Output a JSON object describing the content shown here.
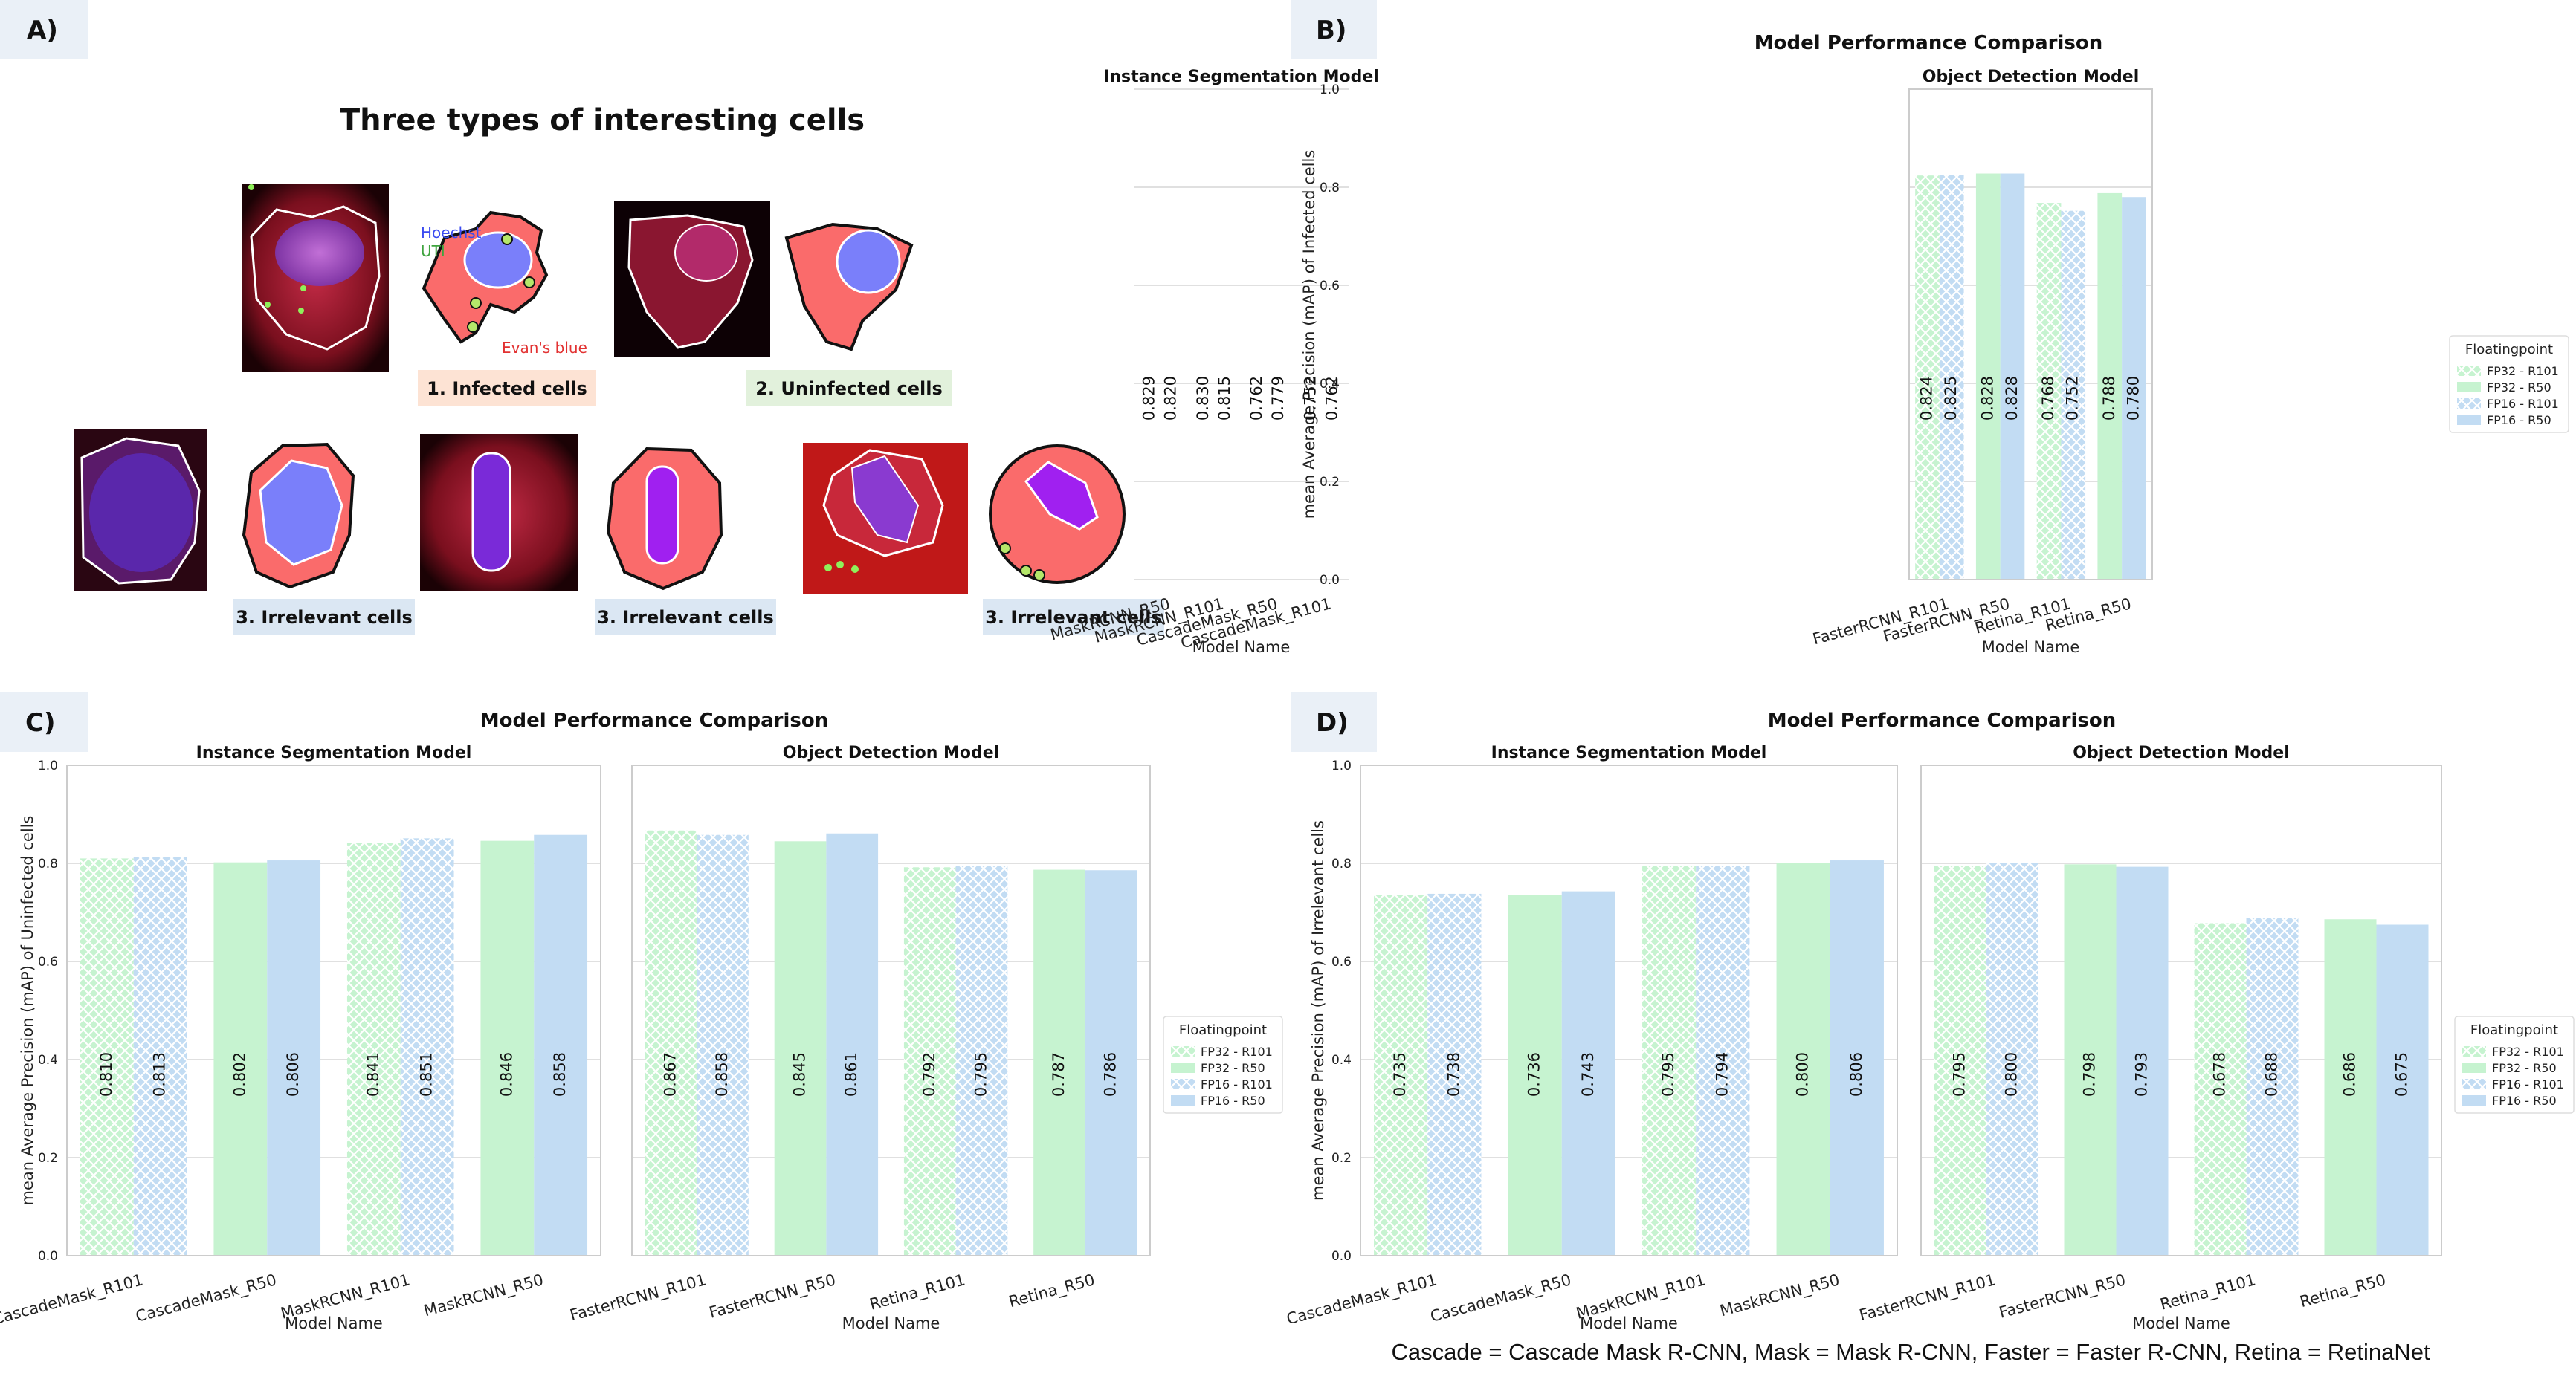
{
  "panel_labels": {
    "a": "A)",
    "b": "B)",
    "c": "C)",
    "d": "D)"
  },
  "panel_a": {
    "title": "Three types of interesting cells",
    "stain_labels": {
      "hoechst": "Hoechst",
      "uti": "UTI",
      "evans": "Evan's blue"
    },
    "captions": {
      "infected": "1. Infected cells",
      "uninfected": "2. Uninfected cells",
      "irrelevant": "3. Irrelevant cells"
    }
  },
  "legend": {
    "title": "Floatingpoint",
    "entries": [
      "FP32 - R101",
      "FP32 - R50",
      "FP16 - R101",
      "FP16 - R50"
    ]
  },
  "colors": {
    "fp32": "#c6f3d0",
    "fp16": "#c2dcf3",
    "hatch": "#ffffff",
    "caption_infected": "#fde3d4",
    "caption_uninfected": "#e2f1dc",
    "caption_irrelevant": "#dbe7f3",
    "label_bg": "#eaf0f7"
  },
  "footnote": "Cascade = Cascade Mask R-CNN, Mask = Mask R-CNN, Faster = Faster R-CNN, Retina = RetinaNet",
  "chart_data": [
    {
      "id": "b",
      "type": "bar",
      "title": "Model Performance Comparison",
      "ylabel": "mean Average Precision (mAP) of Infected cells",
      "xlabel": "Model Name",
      "ylim": [
        0,
        1.0
      ],
      "yticks": [
        "0.0",
        "0.2",
        "0.4",
        "0.6",
        "0.8",
        "1.0"
      ],
      "grid": true,
      "legend_position": "right",
      "subplots": [
        {
          "title": "Instance Segmentation Model",
          "categories": [
            "CascadeMask_R101",
            "CascadeMask_R50",
            "MaskRCNN_R101",
            "MaskRCNN_R50"
          ],
          "bars": [
            [
              0.762,
              0.752
            ],
            [
              0.779,
              0.762
            ],
            [
              0.815,
              0.83
            ],
            [
              0.82,
              0.829
            ]
          ],
          "labels": [
            [
              "0.762",
              "0.752"
            ],
            [
              "0.779",
              "0.762"
            ],
            [
              "0.815",
              "0.830"
            ],
            [
              "0.820",
              "0.829"
            ]
          ]
        },
        {
          "title": "Object Detection Model",
          "categories": [
            "FasterRCNN_R101",
            "FasterRCNN_R50",
            "Retina_R101",
            "Retina_R50"
          ],
          "bars": [
            [
              0.824,
              0.825
            ],
            [
              0.828,
              0.828
            ],
            [
              0.768,
              0.752
            ],
            [
              0.788,
              0.78
            ]
          ],
          "labels": [
            [
              "0.824",
              "0.825"
            ],
            [
              "0.828",
              "0.828"
            ],
            [
              "0.768",
              "0.752"
            ],
            [
              "0.788",
              "0.780"
            ]
          ]
        }
      ]
    },
    {
      "id": "c",
      "type": "bar",
      "title": "Model Performance Comparison",
      "ylabel": "mean Average Precision (mAP) of Uninfected cells",
      "xlabel": "Model Name",
      "ylim": [
        0,
        1.0
      ],
      "yticks": [
        "0.0",
        "0.2",
        "0.4",
        "0.6",
        "0.8",
        "1.0"
      ],
      "grid": true,
      "legend_position": "right",
      "subplots": [
        {
          "title": "Instance Segmentation Model",
          "categories": [
            "CascadeMask_R101",
            "CascadeMask_R50",
            "MaskRCNN_R101",
            "MaskRCNN_R50"
          ],
          "bars": [
            [
              0.81,
              0.813
            ],
            [
              0.802,
              0.806
            ],
            [
              0.841,
              0.851
            ],
            [
              0.846,
              0.858
            ]
          ],
          "labels": [
            [
              "0.810",
              "0.813"
            ],
            [
              "0.802",
              "0.806"
            ],
            [
              "0.841",
              "0.851"
            ],
            [
              "0.846",
              "0.858"
            ]
          ]
        },
        {
          "title": "Object Detection Model",
          "categories": [
            "FasterRCNN_R101",
            "FasterRCNN_R50",
            "Retina_R101",
            "Retina_R50"
          ],
          "bars": [
            [
              0.867,
              0.858
            ],
            [
              0.845,
              0.861
            ],
            [
              0.792,
              0.795
            ],
            [
              0.787,
              0.786
            ]
          ],
          "labels": [
            [
              "0.867",
              "0.858"
            ],
            [
              "0.845",
              "0.861"
            ],
            [
              "0.792",
              "0.795"
            ],
            [
              "0.787",
              "0.786"
            ]
          ]
        }
      ]
    },
    {
      "id": "d",
      "type": "bar",
      "title": "Model Performance Comparison",
      "ylabel": "mean Average Precision (mAP) of Irrelevant cells",
      "xlabel": "Model Name",
      "ylim": [
        0,
        1.0
      ],
      "yticks": [
        "0.0",
        "0.2",
        "0.4",
        "0.6",
        "0.8",
        "1.0"
      ],
      "grid": true,
      "legend_position": "right",
      "subplots": [
        {
          "title": "Instance Segmentation Model",
          "categories": [
            "CascadeMask_R101",
            "CascadeMask_R50",
            "MaskRCNN_R101",
            "MaskRCNN_R50"
          ],
          "bars": [
            [
              0.735,
              0.738
            ],
            [
              0.736,
              0.743
            ],
            [
              0.795,
              0.794
            ],
            [
              0.8,
              0.806
            ]
          ],
          "labels": [
            [
              "0.735",
              "0.738"
            ],
            [
              "0.736",
              "0.743"
            ],
            [
              "0.795",
              "0.794"
            ],
            [
              "0.800",
              "0.806"
            ]
          ]
        },
        {
          "title": "Object Detection Model",
          "categories": [
            "FasterRCNN_R101",
            "FasterRCNN_R50",
            "Retina_R101",
            "Retina_R50"
          ],
          "bars": [
            [
              0.795,
              0.8
            ],
            [
              0.798,
              0.793
            ],
            [
              0.678,
              0.688
            ],
            [
              0.686,
              0.675
            ]
          ],
          "labels": [
            [
              "0.795",
              "0.800"
            ],
            [
              "0.798",
              "0.793"
            ],
            [
              "0.678",
              "0.688"
            ],
            [
              "0.686",
              "0.675"
            ]
          ]
        }
      ]
    }
  ]
}
